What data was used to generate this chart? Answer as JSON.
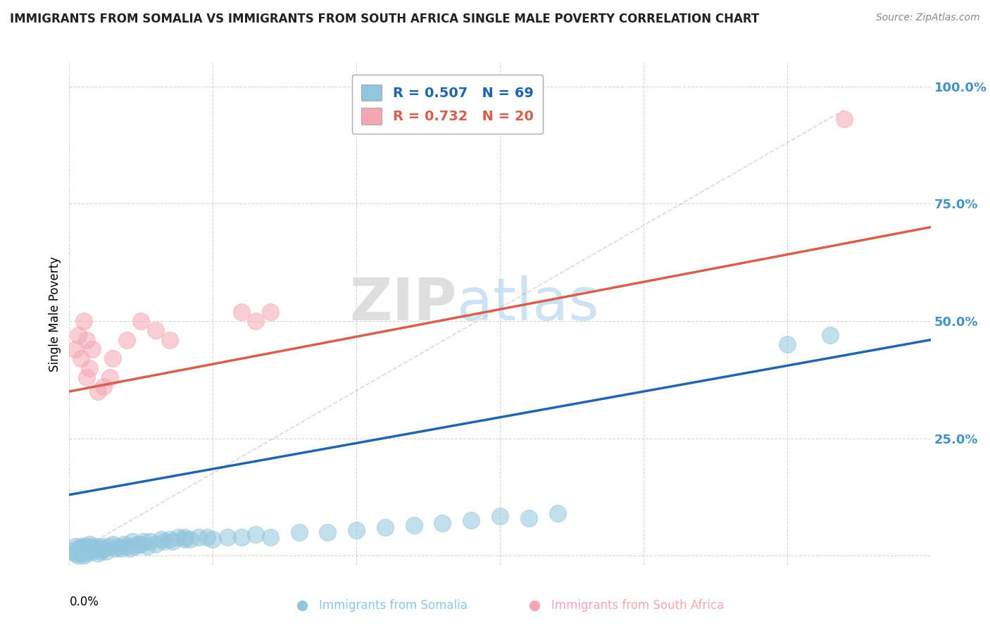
{
  "title": "IMMIGRANTS FROM SOMALIA VS IMMIGRANTS FROM SOUTH AFRICA SINGLE MALE POVERTY CORRELATION CHART",
  "source": "Source: ZipAtlas.com",
  "xlabel_bottom_left": "0.0%",
  "ylabel": "Single Male Poverty",
  "yticks": [
    0.0,
    0.25,
    0.5,
    0.75,
    1.0
  ],
  "ytick_labels": [
    "",
    "25.0%",
    "50.0%",
    "75.0%",
    "100.0%"
  ],
  "xlim": [
    0.0,
    0.3
  ],
  "ylim": [
    -0.02,
    1.05
  ],
  "somalia_color": "#92c5de",
  "south_africa_color": "#f4a7b2",
  "somalia_line_color": "#2166ac",
  "south_africa_line_color": "#d6604d",
  "watermark_zip": "ZIP",
  "watermark_atlas": "atlas",
  "background_color": "#ffffff",
  "grid_color": "#cccccc",
  "somalia_points": [
    [
      0.001,
      0.01
    ],
    [
      0.002,
      0.005
    ],
    [
      0.002,
      0.02
    ],
    [
      0.003,
      0.01
    ],
    [
      0.003,
      0.015
    ],
    [
      0.003,
      0.0
    ],
    [
      0.004,
      0.005
    ],
    [
      0.004,
      0.015
    ],
    [
      0.004,
      0.02
    ],
    [
      0.005,
      0.01
    ],
    [
      0.005,
      0.02
    ],
    [
      0.005,
      0.0
    ],
    [
      0.006,
      0.005
    ],
    [
      0.006,
      0.01
    ],
    [
      0.006,
      0.02
    ],
    [
      0.007,
      0.015
    ],
    [
      0.007,
      0.025
    ],
    [
      0.008,
      0.01
    ],
    [
      0.008,
      0.02
    ],
    [
      0.009,
      0.015
    ],
    [
      0.01,
      0.005
    ],
    [
      0.01,
      0.02
    ],
    [
      0.011,
      0.01
    ],
    [
      0.012,
      0.015
    ],
    [
      0.012,
      0.02
    ],
    [
      0.013,
      0.01
    ],
    [
      0.014,
      0.02
    ],
    [
      0.015,
      0.025
    ],
    [
      0.016,
      0.015
    ],
    [
      0.017,
      0.02
    ],
    [
      0.018,
      0.015
    ],
    [
      0.019,
      0.025
    ],
    [
      0.02,
      0.02
    ],
    [
      0.021,
      0.015
    ],
    [
      0.022,
      0.03
    ],
    [
      0.023,
      0.02
    ],
    [
      0.024,
      0.025
    ],
    [
      0.025,
      0.025
    ],
    [
      0.026,
      0.03
    ],
    [
      0.027,
      0.02
    ],
    [
      0.028,
      0.03
    ],
    [
      0.03,
      0.025
    ],
    [
      0.032,
      0.035
    ],
    [
      0.033,
      0.03
    ],
    [
      0.035,
      0.035
    ],
    [
      0.036,
      0.03
    ],
    [
      0.038,
      0.04
    ],
    [
      0.04,
      0.035
    ],
    [
      0.04,
      0.04
    ],
    [
      0.042,
      0.035
    ],
    [
      0.045,
      0.04
    ],
    [
      0.048,
      0.04
    ],
    [
      0.05,
      0.035
    ],
    [
      0.055,
      0.04
    ],
    [
      0.06,
      0.04
    ],
    [
      0.065,
      0.045
    ],
    [
      0.07,
      0.04
    ],
    [
      0.08,
      0.05
    ],
    [
      0.09,
      0.05
    ],
    [
      0.1,
      0.055
    ],
    [
      0.11,
      0.06
    ],
    [
      0.12,
      0.065
    ],
    [
      0.13,
      0.07
    ],
    [
      0.14,
      0.075
    ],
    [
      0.15,
      0.085
    ],
    [
      0.16,
      0.08
    ],
    [
      0.17,
      0.09
    ],
    [
      0.25,
      0.45
    ],
    [
      0.265,
      0.47
    ]
  ],
  "south_africa_points": [
    [
      0.002,
      0.44
    ],
    [
      0.003,
      0.47
    ],
    [
      0.004,
      0.42
    ],
    [
      0.005,
      0.5
    ],
    [
      0.006,
      0.38
    ],
    [
      0.006,
      0.46
    ],
    [
      0.007,
      0.4
    ],
    [
      0.008,
      0.44
    ],
    [
      0.01,
      0.35
    ],
    [
      0.012,
      0.36
    ],
    [
      0.014,
      0.38
    ],
    [
      0.015,
      0.42
    ],
    [
      0.02,
      0.46
    ],
    [
      0.025,
      0.5
    ],
    [
      0.03,
      0.48
    ],
    [
      0.035,
      0.46
    ],
    [
      0.06,
      0.52
    ],
    [
      0.065,
      0.5
    ],
    [
      0.07,
      0.52
    ],
    [
      0.27,
      0.93
    ]
  ],
  "legend_somalia_R": "0.507",
  "legend_somalia_N": "69",
  "legend_sa_R": "0.732",
  "legend_sa_N": "20"
}
